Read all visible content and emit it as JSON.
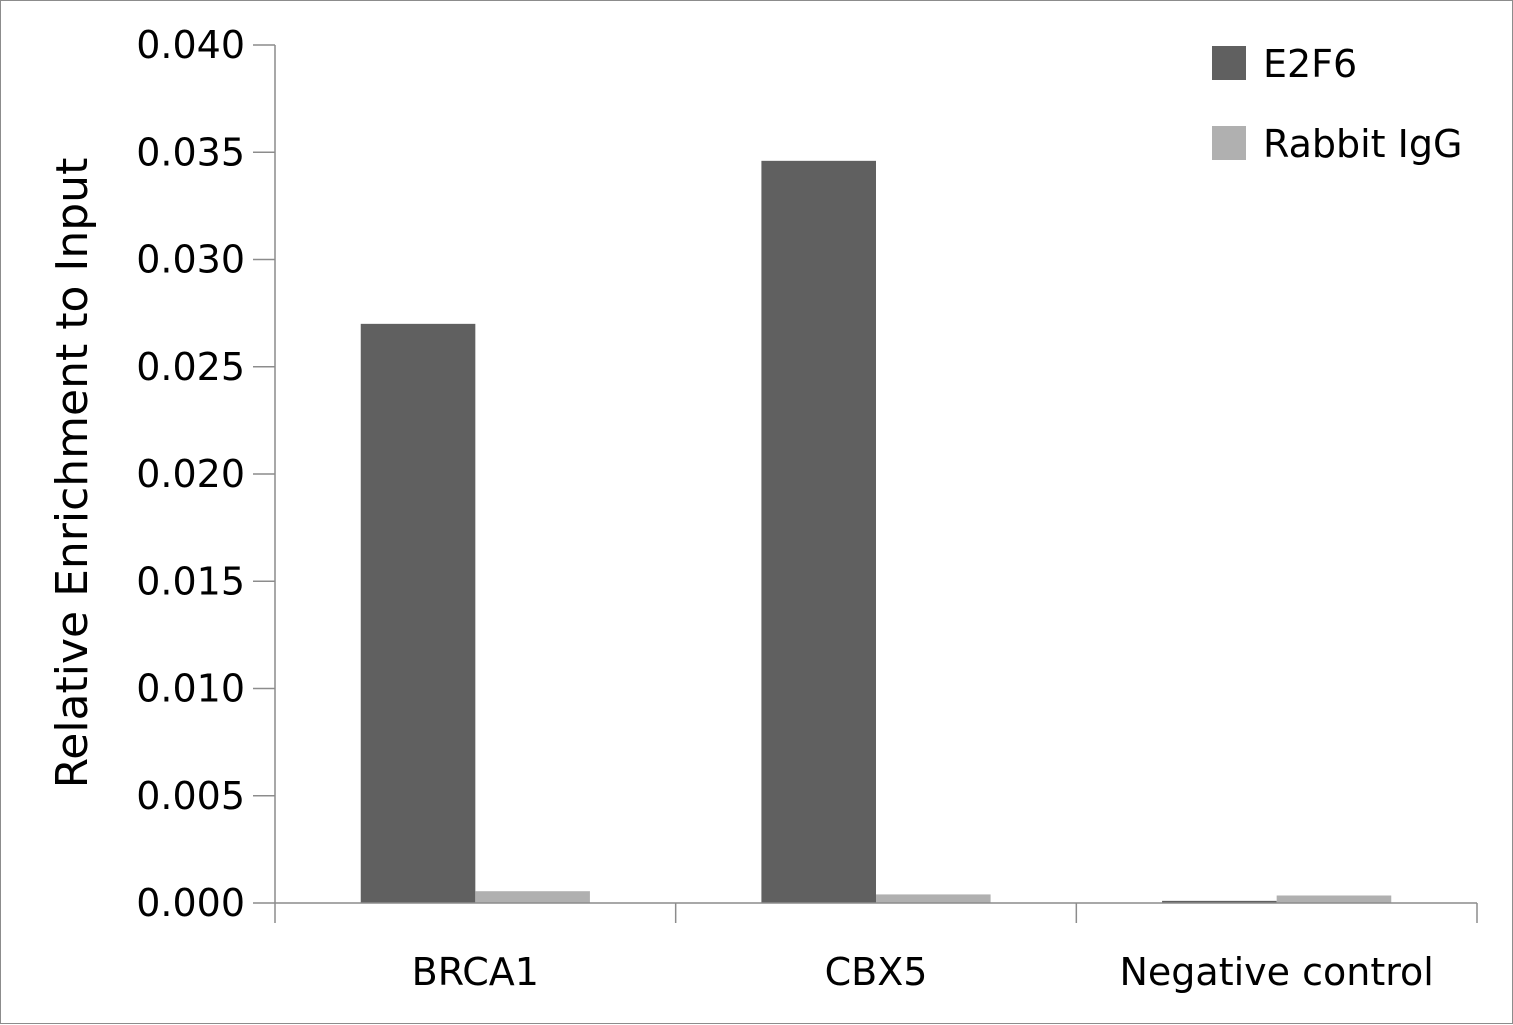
{
  "chart_data": {
    "type": "bar",
    "title": "",
    "xlabel": "",
    "ylabel": "Relative Enrichment to Input",
    "ylim": [
      0,
      0.04
    ],
    "yticks": [
      "0.000",
      "0.005",
      "0.010",
      "0.015",
      "0.020",
      "0.025",
      "0.030",
      "0.035",
      "0.040"
    ],
    "categories": [
      "BRCA1",
      "CBX5",
      "Negative control"
    ],
    "series": [
      {
        "name": "E2F6",
        "color": "#606060",
        "values": [
          0.027,
          0.0346,
          0.0001
        ]
      },
      {
        "name": "Rabbit IgG",
        "color": "#b0b0b0",
        "values": [
          0.00055,
          0.0004,
          0.00035
        ]
      }
    ],
    "grid": false,
    "legend_position": "top-right"
  }
}
